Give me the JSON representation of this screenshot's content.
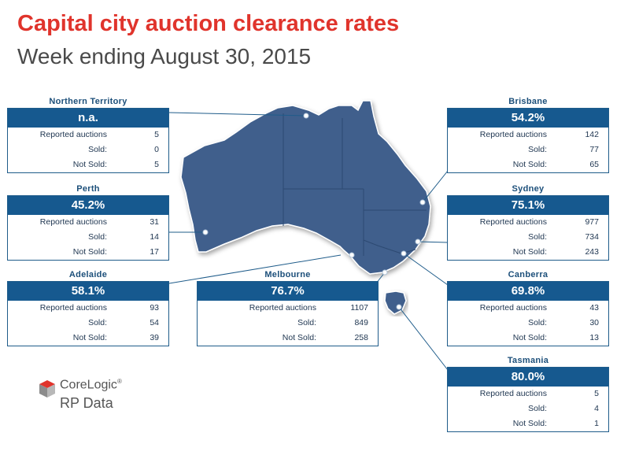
{
  "header": {
    "title": "Capital city auction clearance rates",
    "subtitle": "Week ending August 30, 2015"
  },
  "row_labels": {
    "reported": "Reported auctions",
    "sold": "Sold:",
    "not_sold": "Not Sold:"
  },
  "regions": {
    "northern_territory": {
      "name": "Northern Territory",
      "rate": "n.a.",
      "reported": "5",
      "sold": "0",
      "not_sold": "5"
    },
    "perth": {
      "name": "Perth",
      "rate": "45.2%",
      "reported": "31",
      "sold": "14",
      "not_sold": "17"
    },
    "adelaide": {
      "name": "Adelaide",
      "rate": "58.1%",
      "reported": "93",
      "sold": "54",
      "not_sold": "39"
    },
    "melbourne": {
      "name": "Melbourne",
      "rate": "76.7%",
      "reported": "1107",
      "sold": "849",
      "not_sold": "258"
    },
    "brisbane": {
      "name": "Brisbane",
      "rate": "54.2%",
      "reported": "142",
      "sold": "77",
      "not_sold": "65"
    },
    "sydney": {
      "name": "Sydney",
      "rate": "75.1%",
      "reported": "977",
      "sold": "734",
      "not_sold": "243"
    },
    "canberra": {
      "name": "Canberra",
      "rate": "69.8%",
      "reported": "43",
      "sold": "30",
      "not_sold": "13"
    },
    "tasmania": {
      "name": "Tasmania",
      "rate": "80.0%",
      "reported": "5",
      "sold": "4",
      "not_sold": "1"
    }
  },
  "logo": {
    "brand": "CoreLogic",
    "trademark": "®",
    "product": "RP Data",
    "colors": [
      "#e0342c",
      "#8c8c8c"
    ]
  },
  "colors": {
    "title": "#e0342c",
    "map_fill": "#3f5f8c",
    "box_header": "#16598f"
  }
}
